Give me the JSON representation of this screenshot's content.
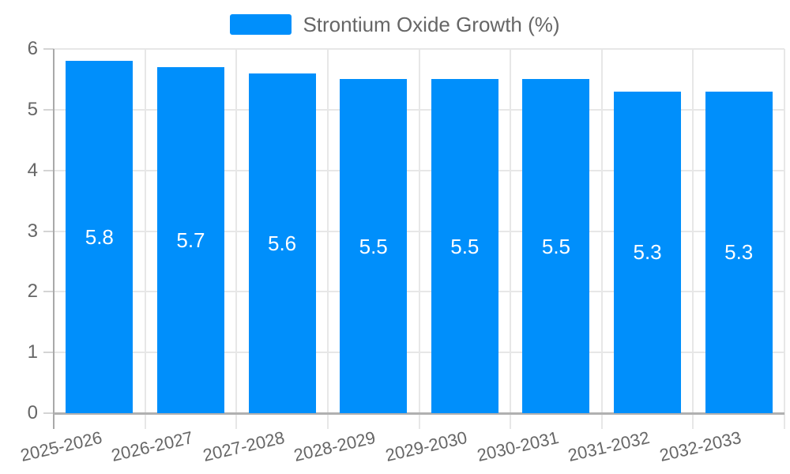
{
  "chart_data": {
    "type": "bar",
    "title": "",
    "legend_label": "Strontium Oxide Growth (%)",
    "legend_position": "top-center",
    "categories": [
      "2025-2026",
      "2026-2027",
      "2027-2028",
      "2028-2029",
      "2029-2030",
      "2030-2031",
      "2031-2032",
      "2032-2033"
    ],
    "series": [
      {
        "name": "Strontium Oxide Growth (%)",
        "values": [
          5.8,
          5.7,
          5.6,
          5.5,
          5.5,
          5.5,
          5.3,
          5.3
        ]
      }
    ],
    "value_labels": [
      "5.8",
      "5.7",
      "5.6",
      "5.5",
      "5.5",
      "5.5",
      "5.3",
      "5.3"
    ],
    "xlabel": "",
    "ylabel": "",
    "ylim": [
      0,
      6
    ],
    "yticks": [
      "0",
      "1",
      "2",
      "3",
      "4",
      "5",
      "6"
    ],
    "grid": true,
    "x_tick_rotation_deg": -13
  },
  "colors": {
    "bar": "#008FFB",
    "bar_value_text": "#ffffff",
    "grid": "#e7e7e7",
    "x_axis_line": "#b0b0b0",
    "y_axis_line": "#a9a9a9",
    "tick": "#d4d4d4",
    "axis_label_text": "#666666",
    "legend_text": "#666666",
    "background": "#ffffff"
  }
}
